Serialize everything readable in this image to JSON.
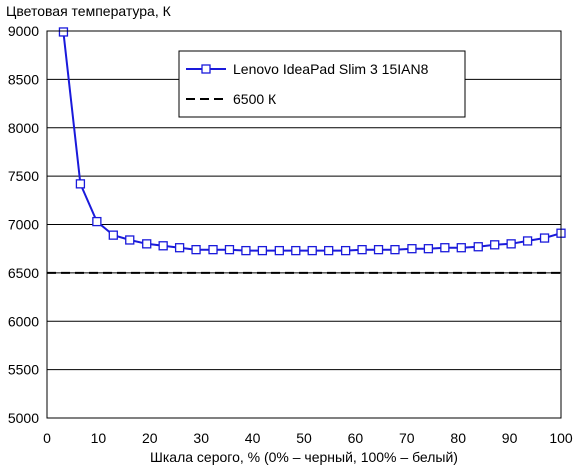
{
  "chart_data": {
    "type": "line",
    "title": "",
    "ylabel": "Цветовая температура, К",
    "xlabel": "Шкала серого, % (0% – черный, 100% – белый)",
    "xlim": [
      0,
      100
    ],
    "ylim": [
      5000,
      9000
    ],
    "xticks": [
      "0",
      "10",
      "20",
      "30",
      "40",
      "50",
      "60",
      "70",
      "80",
      "90",
      "100"
    ],
    "yticks": [
      "5000",
      "5500",
      "6000",
      "6500",
      "7000",
      "7500",
      "8000",
      "8500",
      "9000"
    ],
    "grid": "horizontal",
    "legend_position": "top-center",
    "series": [
      {
        "name": "Lenovo IdeaPad Slim 3 15IAN8",
        "color": "#1a1adb",
        "marker": "open-square",
        "x": [
          3.2,
          6.5,
          9.7,
          12.9,
          16.1,
          19.4,
          22.6,
          25.8,
          29.0,
          32.3,
          35.5,
          38.7,
          41.9,
          45.2,
          48.4,
          51.6,
          54.8,
          58.1,
          61.3,
          64.5,
          67.7,
          71.0,
          74.2,
          77.4,
          80.6,
          83.9,
          87.1,
          90.3,
          93.5,
          96.8,
          100
        ],
        "y": [
          8990,
          7420,
          7030,
          6890,
          6840,
          6800,
          6780,
          6760,
          6740,
          6740,
          6740,
          6730,
          6730,
          6730,
          6730,
          6730,
          6730,
          6730,
          6740,
          6740,
          6740,
          6750,
          6750,
          6760,
          6760,
          6770,
          6790,
          6800,
          6830,
          6860,
          6910
        ]
      },
      {
        "name": "6500 К",
        "color": "#000000",
        "style": "dashed",
        "x": [
          0,
          100
        ],
        "y": [
          6500,
          6500
        ]
      }
    ]
  }
}
